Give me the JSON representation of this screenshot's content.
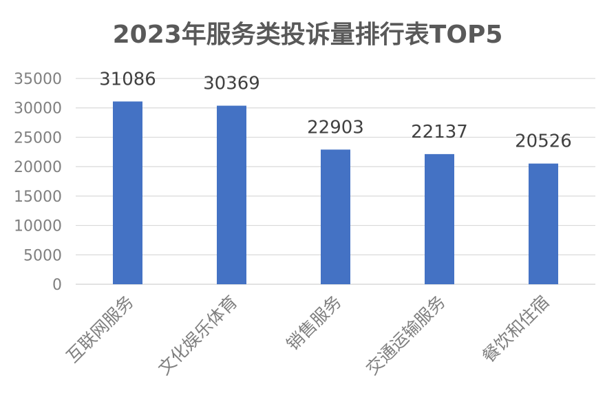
{
  "chart_data": {
    "type": "bar",
    "title": "2023年服务类投诉量排行表TOP5",
    "categories": [
      "互联网服务",
      "文化娱乐体育",
      "销售服务",
      "交通运输服务",
      "餐饮和住宿"
    ],
    "values": [
      31086,
      30369,
      22903,
      22137,
      20526
    ],
    "ylim": [
      0,
      35000
    ],
    "yticks": [
      0,
      5000,
      10000,
      15000,
      20000,
      25000,
      30000,
      35000
    ],
    "grid": true,
    "legend": "none",
    "bar_color": "#4472c4"
  }
}
